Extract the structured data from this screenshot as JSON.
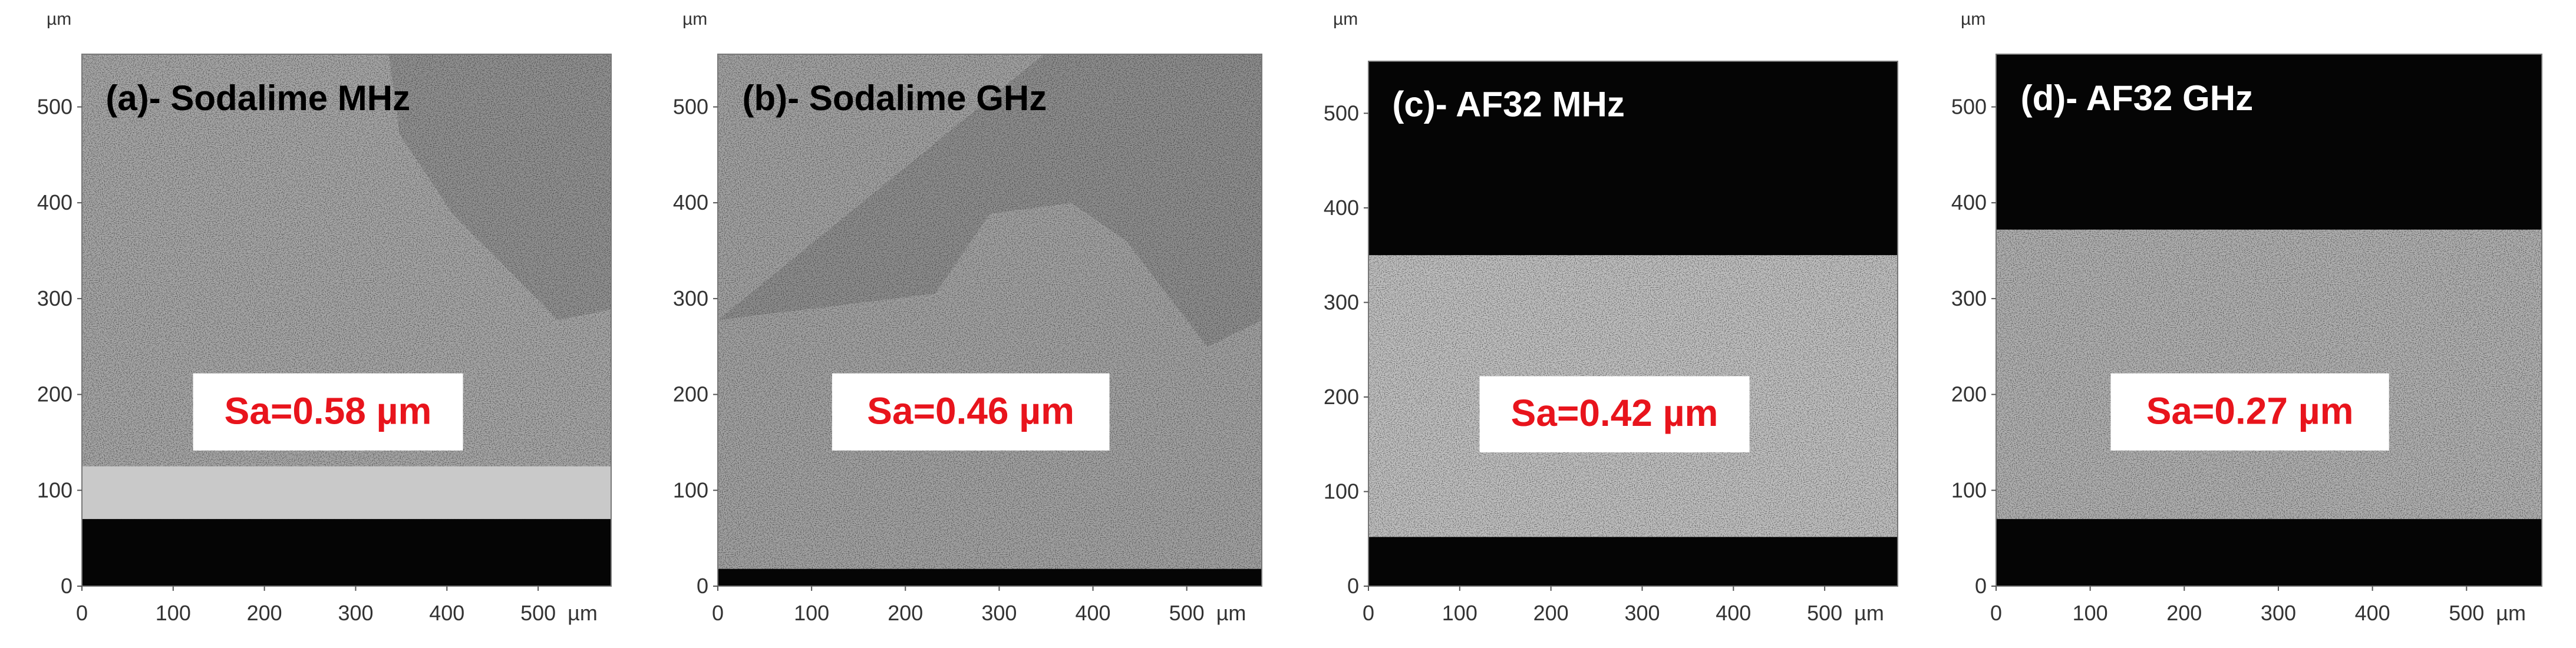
{
  "unit": "µm",
  "panels": [
    {
      "label": "(a)- Sodalime MHz",
      "sa": "Sa=0.58 µm",
      "xlim": [
        0,
        580
      ],
      "ylim": [
        0,
        555
      ],
      "xticks": [
        0,
        100,
        200,
        300,
        400,
        500
      ],
      "yticks": [
        0,
        100,
        200,
        300,
        400,
        500
      ]
    },
    {
      "label": "(b)- Sodalime GHz",
      "sa": "Sa=0.46 µm",
      "xlim": [
        0,
        580
      ],
      "ylim": [
        0,
        555
      ],
      "xticks": [
        0,
        100,
        200,
        300,
        400,
        500
      ],
      "yticks": [
        0,
        100,
        200,
        300,
        400,
        500
      ]
    },
    {
      "label": "(c)- AF32 MHz",
      "sa": "Sa=0.42 µm",
      "xlim": [
        0,
        580
      ],
      "ylim": [
        0,
        555
      ],
      "xticks": [
        0,
        100,
        200,
        300,
        400,
        500
      ],
      "yticks": [
        0,
        100,
        200,
        300,
        400,
        500
      ]
    },
    {
      "label": "(d)- AF32 GHz",
      "sa": "Sa=0.27 µm",
      "xlim": [
        0,
        580
      ],
      "ylim": [
        0,
        555
      ],
      "xticks": [
        0,
        100,
        200,
        300,
        400,
        500
      ],
      "yticks": [
        0,
        100,
        200,
        300,
        400,
        500
      ]
    }
  ]
}
